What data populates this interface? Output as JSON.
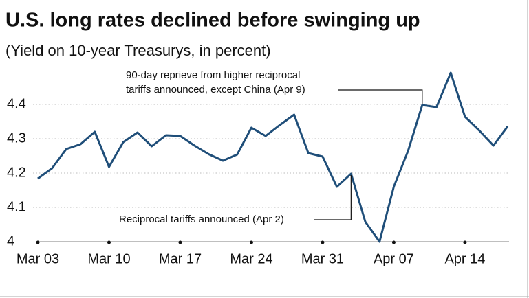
{
  "chart_data": {
    "type": "line",
    "title": "U.S. long rates declined before swinging up",
    "subtitle": "(Yield on 10-year Treasurys, in percent)",
    "categories": [
      "Mar 03",
      null,
      null,
      null,
      null,
      "Mar 10",
      null,
      null,
      null,
      null,
      "Mar 17",
      null,
      null,
      null,
      null,
      "Mar 24",
      null,
      null,
      null,
      null,
      "Mar 31",
      null,
      null,
      null,
      null,
      "Apr 07",
      null,
      null,
      null,
      null,
      "Apr 14",
      null,
      null,
      null
    ],
    "series": [
      {
        "name": "10-year Treasury yield",
        "color": "#1f4e79",
        "values": [
          4.184,
          4.214,
          4.27,
          4.284,
          4.32,
          4.218,
          4.29,
          4.318,
          4.278,
          4.31,
          4.308,
          4.28,
          4.255,
          4.236,
          4.254,
          4.332,
          4.308,
          4.34,
          4.37,
          4.258,
          4.248,
          4.16,
          4.198,
          4.058,
          4.0,
          4.16,
          4.264,
          4.398,
          4.392,
          4.492,
          4.364,
          4.324,
          4.28,
          4.336
        ]
      }
    ],
    "ylim": [
      4,
      4.52
    ],
    "yticks": [
      4,
      4.1,
      4.2,
      4.3,
      4.4
    ],
    "grid": true,
    "annotations": [
      {
        "lines": [
          "90-day reprieve from higher reciprocal",
          "tariffs announced, except China (Apr 9)"
        ]
      },
      {
        "lines": [
          "Reciprocal tariffs announced (Apr 2)"
        ]
      }
    ]
  }
}
